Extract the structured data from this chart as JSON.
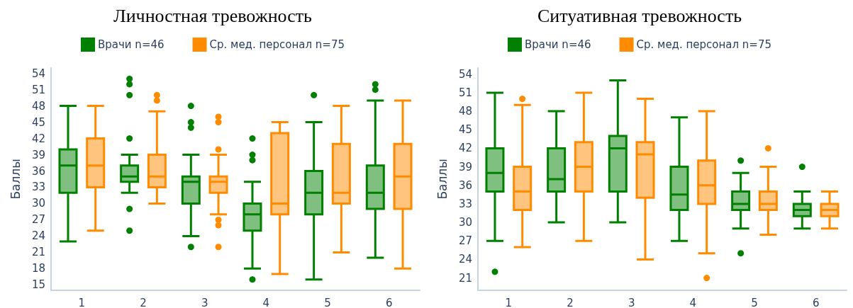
{
  "chart_data": [
    {
      "type": "box",
      "title": "Личностная тревожность",
      "ylabel": "Баллы",
      "categories": [
        "1",
        "2",
        "3",
        "4",
        "5",
        "6"
      ],
      "ylim": [
        14,
        55
      ],
      "yticks": [
        15,
        18,
        21,
        24,
        27,
        30,
        33,
        36,
        39,
        42,
        45,
        48,
        51,
        54
      ],
      "legend": "top",
      "grid": false,
      "series": [
        {
          "name": "Врачи n=46",
          "color": "#008000",
          "boxes": [
            {
              "low": 23,
              "q1": 32,
              "median": 37,
              "q3": 40,
              "high": 48
            },
            {
              "low": 32,
              "q1": 34,
              "median": 35,
              "q3": 37,
              "high": 39,
              "outliers": [
                53,
                52,
                50,
                42,
                29,
                25
              ]
            },
            {
              "low": 24,
              "q1": 30,
              "median": 34,
              "q3": 35,
              "high": 39,
              "outliers": [
                48,
                45,
                44,
                22
              ]
            },
            {
              "low": 18,
              "q1": 25,
              "median": 28,
              "q3": 30,
              "high": 34,
              "outliers": [
                42,
                39,
                38,
                16
              ]
            },
            {
              "low": 16,
              "q1": 28,
              "median": 32,
              "q3": 36,
              "high": 45,
              "outliers": [
                50
              ]
            },
            {
              "low": 20,
              "q1": 29,
              "median": 32,
              "q3": 37,
              "high": 49,
              "outliers": [
                52,
                51
              ]
            }
          ]
        },
        {
          "name": "Ср. мед. персонал n=75",
          "color": "#ff8c00",
          "boxes": [
            {
              "low": 25,
              "q1": 33,
              "median": 37,
              "q3": 42,
              "high": 48
            },
            {
              "low": 30,
              "q1": 33,
              "median": 35,
              "q3": 39,
              "high": 47,
              "outliers": [
                50,
                49
              ]
            },
            {
              "low": 28,
              "q1": 32,
              "median": 34,
              "q3": 35,
              "high": 39,
              "outliers": [
                46,
                45,
                40,
                27,
                26,
                22
              ]
            },
            {
              "low": 17,
              "q1": 28,
              "median": 30,
              "q3": 43,
              "high": 45
            },
            {
              "low": 21,
              "q1": 30,
              "median": 32,
              "q3": 41,
              "high": 48
            },
            {
              "low": 18,
              "q1": 29,
              "median": 35,
              "q3": 41,
              "high": 49
            }
          ]
        }
      ]
    },
    {
      "type": "box",
      "title": "Ситуативная тревожность",
      "ylabel": "Баллы",
      "categories": [
        "1",
        "2",
        "3",
        "4",
        "5",
        "6"
      ],
      "ylim": [
        19,
        55
      ],
      "yticks": [
        21,
        24,
        27,
        30,
        33,
        36,
        39,
        42,
        45,
        48,
        51,
        54
      ],
      "legend": "top",
      "grid": false,
      "series": [
        {
          "name": "Врачи n=46",
          "color": "#008000",
          "boxes": [
            {
              "low": 27,
              "q1": 35,
              "median": 38,
              "q3": 42,
              "high": 51,
              "outliers": [
                22
              ]
            },
            {
              "low": 30,
              "q1": 35,
              "median": 37,
              "q3": 42,
              "high": 48
            },
            {
              "low": 30,
              "q1": 35,
              "median": 42,
              "q3": 44,
              "high": 53
            },
            {
              "low": 27,
              "q1": 32,
              "median": 34.5,
              "q3": 39,
              "high": 47
            },
            {
              "low": 29,
              "q1": 32,
              "median": 33,
              "q3": 35,
              "high": 38,
              "outliers": [
                40,
                25
              ]
            },
            {
              "low": 29,
              "q1": 31,
              "median": 32,
              "q3": 33,
              "high": 35,
              "outliers": [
                39
              ]
            }
          ]
        },
        {
          "name": "Ср. мед. персонал n=75",
          "color": "#ff8c00",
          "boxes": [
            {
              "low": 26,
              "q1": 32,
              "median": 35,
              "q3": 39,
              "high": 49,
              "outliers": [
                50
              ]
            },
            {
              "low": 27,
              "q1": 35,
              "median": 39,
              "q3": 43,
              "high": 51
            },
            {
              "low": 24,
              "q1": 34,
              "median": 41,
              "q3": 43,
              "high": 50
            },
            {
              "low": 25,
              "q1": 33,
              "median": 36,
              "q3": 40,
              "high": 48,
              "outliers": [
                21
              ]
            },
            {
              "low": 28,
              "q1": 32,
              "median": 33,
              "q3": 35,
              "high": 39,
              "outliers": [
                42
              ]
            },
            {
              "low": 29,
              "q1": 31,
              "median": 32,
              "q3": 33,
              "high": 35
            }
          ]
        }
      ]
    }
  ]
}
